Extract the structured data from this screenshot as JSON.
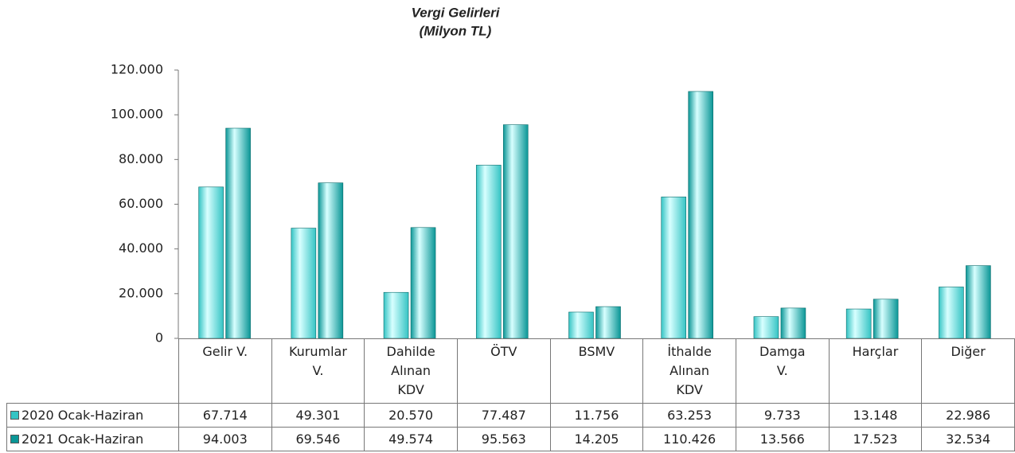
{
  "chart_data": {
    "type": "bar",
    "title": "Vergi Gelirleri",
    "subtitle": "(Milyon TL)",
    "categories": [
      "Gelir V.",
      "Kurumlar V.",
      "Dahilde Alınan KDV",
      "ÖTV",
      "BSMV",
      "İthalde Alınan KDV",
      "Damga V.",
      "Harçlar",
      "Diğer"
    ],
    "series": [
      {
        "name": "2020 Ocak-Haziran",
        "color": "#35c4c4",
        "values": [
          67714,
          49301,
          20570,
          77487,
          11756,
          63253,
          9733,
          13148,
          22986
        ],
        "value_labels": [
          "67.714",
          "49.301",
          "20.570",
          "77.487",
          "11.756",
          "63.253",
          "9.733",
          "13.148",
          "22.986"
        ]
      },
      {
        "name": "2021 Ocak-Haziran",
        "color": "#0a9696",
        "values": [
          94003,
          69546,
          49574,
          95563,
          14205,
          110426,
          13566,
          17523,
          32534
        ],
        "value_labels": [
          "94.003",
          "69.546",
          "49.574",
          "95.563",
          "14.205",
          "110.426",
          "13.566",
          "17.523",
          "32.534"
        ]
      }
    ],
    "ylim": [
      0,
      120000
    ],
    "yticks": [
      0,
      {
        "value": 20000,
        "label": "20.000"
      },
      {
        "value": 40000,
        "label": "40.000"
      },
      {
        "value": 60000,
        "label": "60.000"
      },
      {
        "value": 80000,
        "label": "80.000"
      },
      {
        "value": 100000,
        "label": "100.000"
      },
      {
        "value": 120000,
        "label": "120.000"
      }
    ]
  }
}
